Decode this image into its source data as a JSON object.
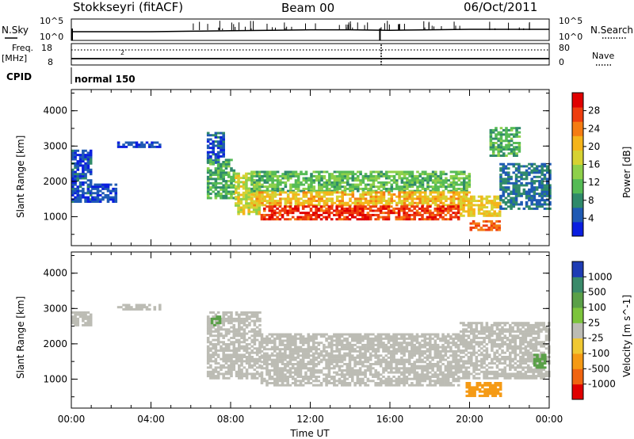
{
  "header": {
    "station": "Stokkseyri (fitACF)",
    "beam": "Beam 00",
    "date": "06/Oct/2011"
  },
  "noise_panel": {
    "left_label": "N.Sky",
    "right_label": "N.Search",
    "left_ticks": [
      "10^5",
      "10^0"
    ],
    "right_ticks": [
      "10^5",
      "10^0"
    ]
  },
  "freq_panel": {
    "left_label": "Freq.",
    "left_unit": "[MHz]",
    "left_ticks": [
      "18",
      "8"
    ],
    "right_label": "Nave",
    "right_ticks": [
      "80",
      "0"
    ],
    "marker": "2"
  },
  "cpid": {
    "label": "CPID",
    "value": "normal 150"
  },
  "x_axis": {
    "label": "Time UT",
    "ticks": [
      "00:00",
      "04:00",
      "08:00",
      "12:00",
      "16:00",
      "20:00",
      "00:00"
    ],
    "range_hours": [
      0,
      24
    ]
  },
  "y_axis": {
    "label": "Slant Range [km]",
    "ticks": [
      "1000",
      "2000",
      "3000",
      "4000"
    ],
    "range_km": [
      180,
      4600
    ]
  },
  "colorbars": {
    "power": {
      "label": "Power [dB]",
      "ticks": [
        "4",
        "8",
        "12",
        "16",
        "20",
        "24",
        "28"
      ],
      "colors": [
        "#0a1ee0",
        "#1f5ab4",
        "#2f8a6a",
        "#55bb55",
        "#8ed04a",
        "#d6d232",
        "#f5b41a",
        "#f57c12",
        "#ee3d0e",
        "#e00000"
      ]
    },
    "velocity": {
      "label": "Velocity [m s^-1]",
      "ticks": [
        "1000",
        "500",
        "100",
        "25",
        "-25",
        "-100",
        "-500",
        "-1000"
      ],
      "colors": [
        "#1e3cb4",
        "#3a8a6a",
        "#5aa048",
        "#7cc43c",
        "#bcbcb4",
        "#f0c832",
        "#f59a14",
        "#f06410",
        "#e00000"
      ]
    }
  },
  "chart_data": [
    {
      "type": "line",
      "title": "N.Sky / N.Search",
      "x": [
        0,
        2,
        4,
        6,
        8,
        10,
        12,
        14,
        16,
        18,
        20,
        22,
        24
      ],
      "series": [
        {
          "name": "N.Sky",
          "values": [
            1.0,
            1.0,
            1.0,
            1.1,
            1.2,
            1.3,
            1.4,
            1.4,
            1.3,
            1.4,
            1.5,
            1.5,
            1.5
          ]
        }
      ]
    },
    {
      "type": "line",
      "title": "Freq / Nave",
      "x": [
        0,
        24
      ],
      "series": [
        {
          "name": "Freq.",
          "values": [
            10,
            10
          ]
        },
        {
          "name": "Nave",
          "values": [
            18,
            18
          ]
        }
      ]
    },
    {
      "type": "heatmap",
      "title": "Power [dB]",
      "xlabel": "Time UT",
      "ylabel": "Slant Range [km]",
      "xlim": [
        0,
        24
      ],
      "ylim": [
        180,
        4600
      ],
      "regions": [
        {
          "t": [
            0.0,
            1.0
          ],
          "r": [
            1400,
            2900
          ],
          "v": 6
        },
        {
          "t": [
            1.0,
            2.2
          ],
          "r": [
            1400,
            1900
          ],
          "v": 5
        },
        {
          "t": [
            2.3,
            4.5
          ],
          "r": [
            2950,
            3100
          ],
          "v": 5
        },
        {
          "t": [
            6.8,
            7.6
          ],
          "r": [
            2500,
            3400
          ],
          "v": 6
        },
        {
          "t": [
            6.8,
            8.2
          ],
          "r": [
            1500,
            2600
          ],
          "v": 12
        },
        {
          "t": [
            8.2,
            9.5
          ],
          "r": [
            1050,
            2200
          ],
          "v": 18
        },
        {
          "t": [
            9.0,
            20.0
          ],
          "r": [
            1700,
            2300
          ],
          "v": 13
        },
        {
          "t": [
            9.0,
            20.0
          ],
          "r": [
            1300,
            1700
          ],
          "v": 21
        },
        {
          "t": [
            9.5,
            19.5
          ],
          "r": [
            900,
            1300
          ],
          "v": 28
        },
        {
          "t": [
            19.5,
            21.5
          ],
          "r": [
            1000,
            1600
          ],
          "v": 20
        },
        {
          "t": [
            20.0,
            21.5
          ],
          "r": [
            600,
            900
          ],
          "v": 26
        },
        {
          "t": [
            21.5,
            24.0
          ],
          "r": [
            1200,
            2500
          ],
          "v": 8
        },
        {
          "t": [
            21.0,
            22.5
          ],
          "r": [
            2700,
            3500
          ],
          "v": 12
        }
      ]
    },
    {
      "type": "heatmap",
      "title": "Velocity [m s^-1]",
      "xlabel": "Time UT",
      "ylabel": "Slant Range [km]",
      "xlim": [
        0,
        24
      ],
      "ylim": [
        180,
        4600
      ],
      "regions": [
        {
          "t": [
            0.0,
            1.0
          ],
          "r": [
            2500,
            2900
          ],
          "v": 0
        },
        {
          "t": [
            2.3,
            4.5
          ],
          "r": [
            2950,
            3100
          ],
          "v": 0
        },
        {
          "t": [
            6.8,
            9.5
          ],
          "r": [
            1000,
            2900
          ],
          "v": 0
        },
        {
          "t": [
            9.5,
            19.5
          ],
          "r": [
            800,
            2300
          ],
          "v": 0
        },
        {
          "t": [
            19.5,
            24.0
          ],
          "r": [
            1000,
            2600
          ],
          "v": 0
        },
        {
          "t": [
            19.8,
            21.5
          ],
          "r": [
            500,
            900
          ],
          "v": -300
        },
        {
          "t": [
            7.0,
            7.4
          ],
          "r": [
            2500,
            2800
          ],
          "v": 150
        },
        {
          "t": [
            23.2,
            23.8
          ],
          "r": [
            1300,
            1700
          ],
          "v": 150
        }
      ]
    }
  ]
}
